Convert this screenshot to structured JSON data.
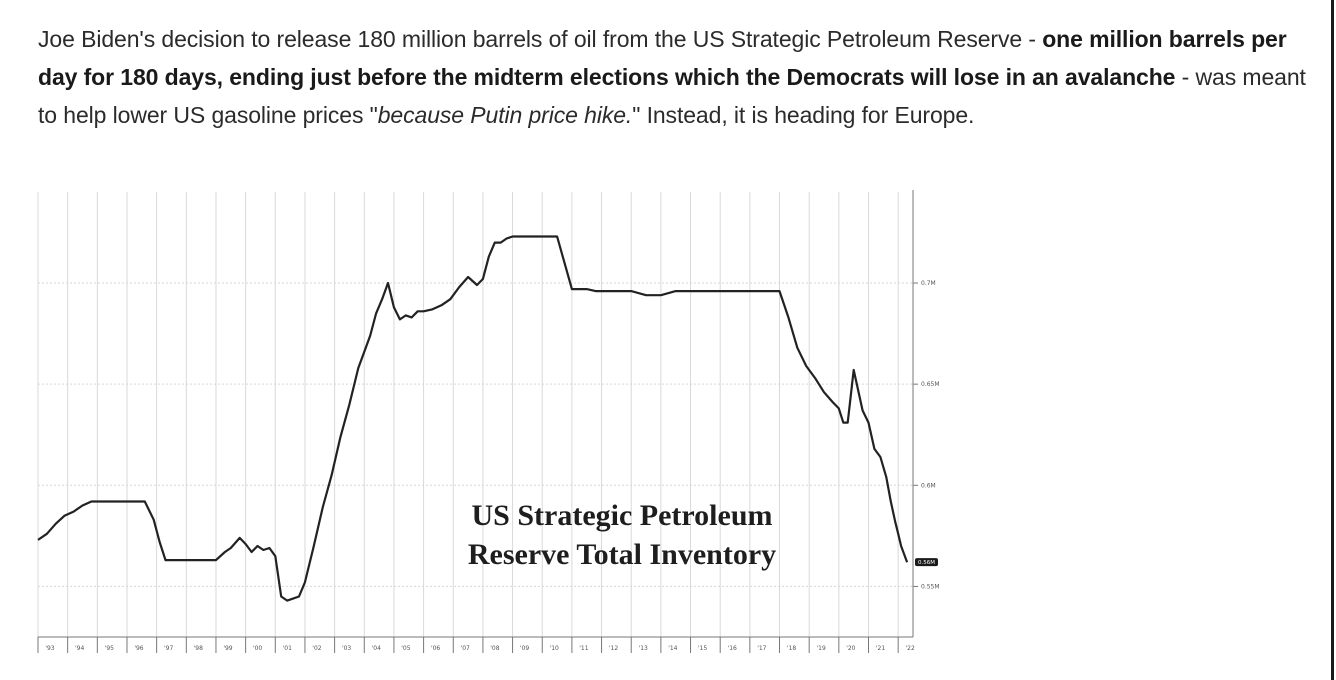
{
  "article": {
    "text_1": "Joe Biden's decision to release 180 million barrels of oil from the US Strategic Petroleum Reserve - ",
    "bold_1": "one million barrels per day for 180 days, ending just before the midterm elections which the Democrats will lose in an avalanche",
    "text_2": " - was meant to help lower US gasoline prices \"",
    "italic_1": "because Putin price hike.",
    "text_3": "\" Instead, it is heading for Europe."
  },
  "chart_data": {
    "type": "line",
    "title": "US Strategic Petroleum Reserve Total Inventory",
    "x_tick_labels": [
      "'93",
      "'94",
      "'95",
      "'96",
      "'97",
      "'98",
      "'99",
      "'00",
      "'01",
      "'02",
      "'03",
      "'04",
      "'05",
      "'06",
      "'07",
      "'08",
      "'09",
      "'10",
      "'11",
      "'12",
      "'13",
      "'14",
      "'15",
      "'16",
      "'17",
      "'18",
      "'19",
      "'20",
      "'21",
      "'22"
    ],
    "y_axis": {
      "position": "right",
      "tick_labels": [
        "0.7M",
        "0.65M",
        "0.6M",
        "0.55M"
      ],
      "ticks": [
        0.7,
        0.65,
        0.6,
        0.55
      ],
      "ylim": [
        0.525,
        0.745
      ],
      "last_value_label": "0.56M"
    },
    "xlim": [
      1993.0,
      2022.5
    ],
    "grid": true,
    "series": [
      {
        "color": "#222222",
        "x": [
          1993.0,
          1993.3,
          1993.6,
          1993.9,
          1994.2,
          1994.5,
          1994.8,
          1995.0,
          1995.5,
          1996.0,
          1996.3,
          1996.6,
          1996.9,
          1997.1,
          1997.3,
          1997.6,
          1998.0,
          1998.5,
          1999.0,
          1999.3,
          1999.5,
          1999.8,
          2000.0,
          2000.2,
          2000.4,
          2000.6,
          2000.8,
          2001.0,
          2001.2,
          2001.4,
          2001.6,
          2001.8,
          2002.0,
          2002.3,
          2002.6,
          2002.9,
          2003.2,
          2003.5,
          2003.8,
          2004.0,
          2004.2,
          2004.4,
          2004.6,
          2004.8,
          2005.0,
          2005.2,
          2005.4,
          2005.6,
          2005.8,
          2006.0,
          2006.3,
          2006.6,
          2006.9,
          2007.2,
          2007.5,
          2007.8,
          2008.0,
          2008.2,
          2008.4,
          2008.6,
          2008.8,
          2009.0,
          2009.5,
          2010.0,
          2010.5,
          2011.0,
          2011.5,
          2011.8,
          2012.0,
          2012.5,
          2013.0,
          2013.5,
          2014.0,
          2014.5,
          2015.0,
          2015.5,
          2016.0,
          2016.5,
          2017.0,
          2017.5,
          2018.0,
          2018.3,
          2018.6,
          2018.9,
          2019.2,
          2019.5,
          2019.8,
          2020.0,
          2020.15,
          2020.3,
          2020.5,
          2020.8,
          2021.0,
          2021.2,
          2021.4,
          2021.6,
          2021.75,
          2021.9,
          2022.0,
          2022.1,
          2022.2,
          2022.3
        ],
        "y": [
          0.573,
          0.576,
          0.581,
          0.585,
          0.587,
          0.59,
          0.592,
          0.592,
          0.592,
          0.592,
          0.592,
          0.592,
          0.583,
          0.572,
          0.563,
          0.563,
          0.563,
          0.563,
          0.563,
          0.567,
          0.569,
          0.574,
          0.571,
          0.567,
          0.57,
          0.568,
          0.569,
          0.565,
          0.545,
          0.543,
          0.544,
          0.545,
          0.552,
          0.57,
          0.589,
          0.605,
          0.624,
          0.64,
          0.658,
          0.666,
          0.674,
          0.685,
          0.692,
          0.7,
          0.688,
          0.682,
          0.684,
          0.683,
          0.686,
          0.686,
          0.687,
          0.689,
          0.692,
          0.698,
          0.703,
          0.699,
          0.702,
          0.713,
          0.72,
          0.72,
          0.722,
          0.723,
          0.723,
          0.723,
          0.723,
          0.697,
          0.697,
          0.696,
          0.696,
          0.696,
          0.696,
          0.694,
          0.694,
          0.696,
          0.696,
          0.696,
          0.696,
          0.696,
          0.696,
          0.696,
          0.696,
          0.683,
          0.668,
          0.659,
          0.653,
          0.646,
          0.641,
          0.638,
          0.631,
          0.631,
          0.657,
          0.637,
          0.631,
          0.618,
          0.614,
          0.604,
          0.592,
          0.582,
          0.576,
          0.57,
          0.566,
          0.562
        ]
      }
    ]
  },
  "colors": {
    "line": "#222222",
    "grid": "#d9d9d9",
    "text": "#2b2b2b"
  }
}
